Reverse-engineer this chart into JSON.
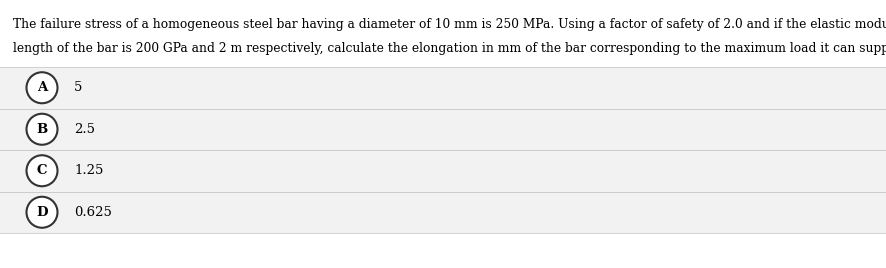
{
  "question_line1": "The failure stress of a homogeneous steel bar having a diameter of 10 mm is 250 MPa. Using a factor of safety of 2.0 and if the elastic modulus and",
  "question_line2": "length of the bar is 200 GPa and 2 m respectively, calculate the elongation in mm of the bar corresponding to the maximum load it can support.",
  "options": [
    {
      "label": "A",
      "text": "5"
    },
    {
      "label": "B",
      "text": "2.5"
    },
    {
      "label": "C",
      "text": "1.25"
    },
    {
      "label": "D",
      "text": "0.625"
    }
  ],
  "background_color": "#ffffff",
  "option_bg_color": "#f2f2f2",
  "option_border_color": "#cccccc",
  "text_color": "#000000",
  "circle_edge_color": "#333333",
  "circle_face_color": "#ffffff",
  "question_fontsize": 8.8,
  "option_fontsize": 9.5,
  "label_fontsize": 9.5,
  "fig_width": 8.87,
  "fig_height": 2.68,
  "dpi": 100
}
